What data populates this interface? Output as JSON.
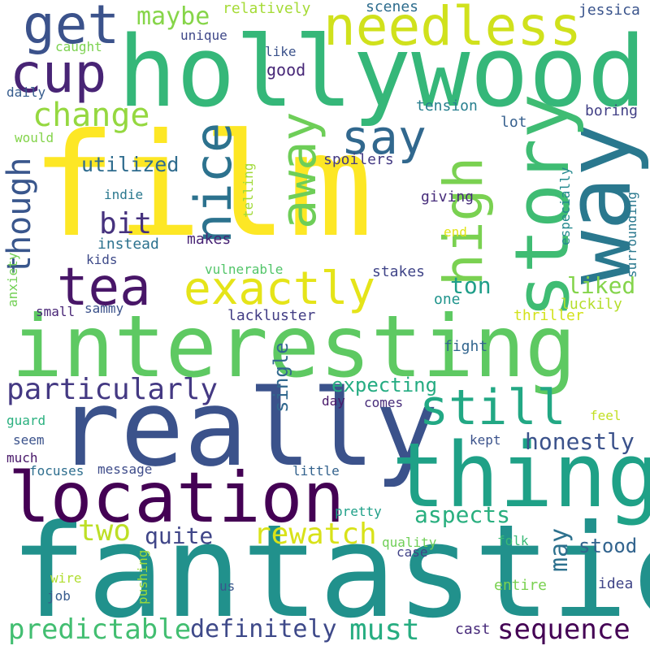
{
  "words": [
    {
      "text": "film",
      "color": "#fde725"
    },
    {
      "text": "hollywood",
      "color": "#35b779"
    },
    {
      "text": "interesting",
      "color": "#5ec962"
    },
    {
      "text": "fantastic",
      "color": "#21918c"
    },
    {
      "text": "really",
      "color": "#3b528b"
    },
    {
      "text": "location",
      "color": "#440154"
    },
    {
      "text": "thing",
      "color": "#1fa187"
    },
    {
      "text": "way",
      "color": "#2a788e"
    },
    {
      "text": "story",
      "color": "#3fbc73"
    },
    {
      "text": "high",
      "color": "#7ad151"
    },
    {
      "text": "needless",
      "color": "#d0e11c"
    },
    {
      "text": "cup",
      "color": "#482475"
    },
    {
      "text": "get",
      "color": "#3b528b"
    },
    {
      "text": "tea",
      "color": "#481668"
    },
    {
      "text": "nice",
      "color": "#2c728e"
    },
    {
      "text": "away",
      "color": "#6ece58"
    },
    {
      "text": "say",
      "color": "#31688e"
    },
    {
      "text": "exactly",
      "color": "#e5e419"
    },
    {
      "text": "still",
      "color": "#22a884"
    },
    {
      "text": "change",
      "color": "#95d840"
    },
    {
      "text": "though",
      "color": "#39568c"
    },
    {
      "text": "particularly",
      "color": "#443983"
    },
    {
      "text": "maybe",
      "color": "#86d549"
    },
    {
      "text": "bit",
      "color": "#46327e"
    },
    {
      "text": "utilized",
      "color": "#2f6c8e"
    },
    {
      "text": "rewatch",
      "color": "#d8e219"
    },
    {
      "text": "two",
      "color": "#bddf26"
    },
    {
      "text": "predictable",
      "color": "#42be71"
    },
    {
      "text": "definitely",
      "color": "#3e4989"
    },
    {
      "text": "must",
      "color": "#27ad81"
    },
    {
      "text": "sequence",
      "color": "#440154"
    },
    {
      "text": "honestly",
      "color": "#3b528b"
    },
    {
      "text": "expecting",
      "color": "#25ac82"
    },
    {
      "text": "aspects",
      "color": "#29af7f"
    },
    {
      "text": "quite",
      "color": "#404688"
    },
    {
      "text": "ton",
      "color": "#1f9e89"
    },
    {
      "text": "liked",
      "color": "#84d44b"
    },
    {
      "text": "may",
      "color": "#2d718e"
    },
    {
      "text": "single",
      "color": "#31688e"
    },
    {
      "text": "stood",
      "color": "#32648e"
    },
    {
      "text": "relatively",
      "color": "#a5db36"
    },
    {
      "text": "scenes",
      "color": "#2e6d8e"
    },
    {
      "text": "jessica",
      "color": "#3a548c"
    },
    {
      "text": "unique",
      "color": "#3f4889"
    },
    {
      "text": "caught",
      "color": "#7cd250"
    },
    {
      "text": "like",
      "color": "#3b528b"
    },
    {
      "text": "good",
      "color": "#482878"
    },
    {
      "text": "daily",
      "color": "#365c8d"
    },
    {
      "text": "tension",
      "color": "#277f8e"
    },
    {
      "text": "boring",
      "color": "#424086"
    },
    {
      "text": "lot",
      "color": "#355f8d"
    },
    {
      "text": "would",
      "color": "#84d44b"
    },
    {
      "text": "telling",
      "color": "#a0da39"
    },
    {
      "text": "spoilers",
      "color": "#443a83"
    },
    {
      "text": "indie",
      "color": "#2a788e"
    },
    {
      "text": "giving",
      "color": "#472d7b"
    },
    {
      "text": "especially",
      "color": "#23898e"
    },
    {
      "text": "surrounding",
      "color": "#2a788e"
    },
    {
      "text": "instead",
      "color": "#2c728e"
    },
    {
      "text": "makes",
      "color": "#482475"
    },
    {
      "text": "end",
      "color": "#e2e418"
    },
    {
      "text": "kids",
      "color": "#3e4a89"
    },
    {
      "text": "anxiety",
      "color": "#73d056"
    },
    {
      "text": "vulnerable",
      "color": "#52c569"
    },
    {
      "text": "stakes",
      "color": "#404588"
    },
    {
      "text": "small",
      "color": "#482576"
    },
    {
      "text": "sammy",
      "color": "#3b528b"
    },
    {
      "text": "lackluster",
      "color": "#433e85"
    },
    {
      "text": "one",
      "color": "#1f948c"
    },
    {
      "text": "luckily",
      "color": "#b5de2b"
    },
    {
      "text": "thriller",
      "color": "#d2e21b"
    },
    {
      "text": "fight",
      "color": "#32658e"
    },
    {
      "text": "day",
      "color": "#48186a"
    },
    {
      "text": "comes",
      "color": "#472c7a"
    },
    {
      "text": "feel",
      "color": "#c2df23"
    },
    {
      "text": "guard",
      "color": "#2ab07f"
    },
    {
      "text": "seem",
      "color": "#3b528b"
    },
    {
      "text": "kept",
      "color": "#3b528b"
    },
    {
      "text": "much",
      "color": "#481769"
    },
    {
      "text": "focuses",
      "color": "#2e6e8e"
    },
    {
      "text": "message",
      "color": "#3e4c8a"
    },
    {
      "text": "little",
      "color": "#33628d"
    },
    {
      "text": "pretty",
      "color": "#1fa088"
    },
    {
      "text": "case",
      "color": "#414287"
    },
    {
      "text": "quality",
      "color": "#70cf57"
    },
    {
      "text": "folk",
      "color": "#3aba76"
    },
    {
      "text": "pushing",
      "color": "#9bd93c"
    },
    {
      "text": "wire",
      "color": "#b0dd2f"
    },
    {
      "text": "us",
      "color": "#39568c"
    },
    {
      "text": "job",
      "color": "#375b8d"
    },
    {
      "text": "entire",
      "color": "#7ad151"
    },
    {
      "text": "idea",
      "color": "#404588"
    },
    {
      "text": "cast",
      "color": "#472a7a"
    }
  ]
}
